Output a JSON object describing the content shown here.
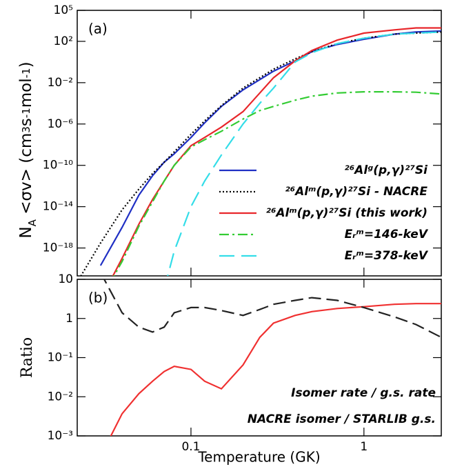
{
  "chart_data": [
    {
      "type": "line",
      "log_x": true,
      "log_y": true,
      "annotation": "(a)",
      "ylabel": [
        "N",
        "A",
        " <σv> (cm",
        "3",
        "s",
        "-1",
        "mol",
        "-1",
        ")"
      ],
      "x": [
        0.022,
        0.03,
        0.04,
        0.05,
        0.06,
        0.07,
        0.08,
        0.1,
        0.12,
        0.15,
        0.2,
        0.25,
        0.3,
        0.4,
        0.5,
        0.7,
        1,
        1.5,
        2,
        2.8
      ],
      "xlim": [
        0.022,
        2.8
      ],
      "xticks": [
        0.1,
        1
      ],
      "ylim": [
        2e-21,
        100000
      ],
      "yticks": [
        {
          "value": 100000,
          "label": "10⁵"
        },
        {
          "value": 100,
          "label": "10²"
        },
        {
          "value": 0.01,
          "label": "10⁻²"
        },
        {
          "value": 1e-06,
          "label": "10⁻⁶"
        },
        {
          "value": 1e-10,
          "label": "10⁻¹⁰"
        },
        {
          "value": 1e-14,
          "label": "10⁻¹⁴"
        },
        {
          "value": 1e-18,
          "label": "10⁻¹⁸"
        }
      ],
      "series": [
        {
          "name": "²⁶Alᵍ(p,γ)²⁷Si",
          "color": "#1f2fc4",
          "dash": "solid",
          "values": [
            null,
            2e-20,
            1e-16,
            1.3e-13,
            1e-11,
            2e-10,
            1.3e-09,
            5e-08,
            1.3e-06,
            5e-05,
            0.002,
            0.02,
            0.13,
            1.3,
            10,
            50,
            160,
            500,
            800,
            1000
          ]
        },
        {
          "name": "²⁶Alᵐ(p,γ)²⁷Si - NACRE",
          "color": "#000000",
          "dash": "dotted",
          "values": [
            5e-22,
            3e-18,
            5e-15,
            5e-13,
            1.6e-11,
            2e-10,
            2e-09,
            1e-07,
            2e-06,
            6e-05,
            0.003,
            0.03,
            0.2,
            2,
            10,
            60,
            200,
            500,
            630,
            800
          ]
        },
        {
          "name": "²⁶Alᵐ(p,γ)²⁷Si (this work)",
          "color": "#e8262a",
          "dash": "solid",
          "values": [
            null,
            1e-23,
            1e-19,
            2e-16,
            5e-14,
            3e-12,
            1e-10,
            8e-09,
            5e-08,
            5e-07,
            1.6e-05,
            0.001,
            0.03,
            1.3,
            13,
            130,
            630,
            1300,
            2000,
            2000
          ]
        },
        {
          "name": "Eᵣᵐ=146-keV",
          "color": "#33cc33",
          "dash": "dashdot",
          "values": [
            null,
            1e-23,
            5e-20,
            1.3e-16,
            3e-14,
            3e-12,
            1e-10,
            6e-09,
            3e-08,
            2e-07,
            3e-06,
            2e-05,
            5e-05,
            0.0002,
            0.0005,
            0.001,
            0.0013,
            0.0013,
            0.0012,
            0.0008
          ]
        },
        {
          "name": "Eᵣᵐ=378-keV",
          "color": "#33dde8",
          "dash": "dashed",
          "values": [
            null,
            null,
            null,
            null,
            null,
            1e-22,
            5e-19,
            1e-14,
            3e-12,
            1e-09,
            1e-06,
            0.0001,
            0.003,
            1,
            8,
            60,
            200,
            500,
            630,
            800
          ]
        }
      ]
    },
    {
      "type": "line",
      "log_x": true,
      "log_y": true,
      "annotation": "(b)",
      "xlabel": "Temperature (GK)",
      "ylabel": "Ratio",
      "notes": [
        {
          "text": "Isomer rate / g.s. rate",
          "color": "#ee6644"
        },
        {
          "text": "NACRE isomer / STARLIB g.s.",
          "color": "#000000"
        }
      ],
      "x": [
        0.022,
        0.03,
        0.04,
        0.05,
        0.06,
        0.07,
        0.08,
        0.1,
        0.12,
        0.15,
        0.2,
        0.25,
        0.3,
        0.4,
        0.5,
        0.7,
        1,
        1.5,
        2,
        2.8
      ],
      "xlim": [
        0.022,
        2.8
      ],
      "xticks": [
        0.1,
        1
      ],
      "ylim": [
        0.001,
        10
      ],
      "yticks": [
        10,
        1,
        {
          "value": 0.1,
          "label": "10⁻¹"
        },
        {
          "value": 0.01,
          "label": "10⁻²"
        },
        {
          "value": 0.001,
          "label": "10⁻³"
        }
      ],
      "series": [
        {
          "color": "#f03030",
          "dash": "solid",
          "values": [
            null,
            0.0003,
            0.0037,
            0.012,
            0.025,
            0.044,
            0.06,
            0.05,
            0.025,
            0.016,
            0.065,
            0.33,
            0.76,
            1.2,
            1.5,
            1.8,
            2,
            2.3,
            2.4,
            2.4
          ]
        },
        {
          "color": "#222222",
          "dash": "longdash",
          "values": [
            null,
            15,
            1.4,
            0.6,
            0.45,
            0.6,
            1.4,
            1.9,
            1.9,
            1.6,
            1.2,
            1.7,
            2.3,
            2.9,
            3.4,
            2.9,
            1.9,
            1.1,
            0.7,
            0.33
          ]
        }
      ]
    }
  ]
}
